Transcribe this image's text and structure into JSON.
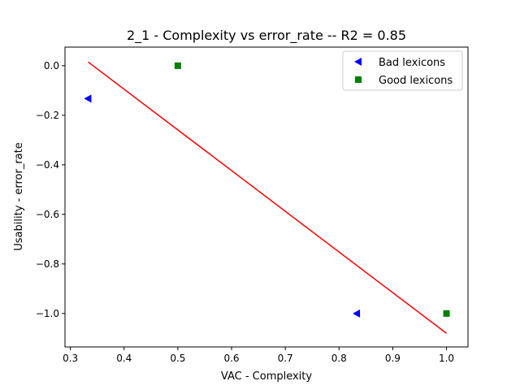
{
  "chart_data": {
    "type": "scatter",
    "title": "2_1 - Complexity  vs  error_rate -- R2 = 0.85",
    "xlabel": "VAC - Complexity",
    "ylabel": "Usability - error_rate",
    "xlim": [
      0.29,
      1.04
    ],
    "ylim": [
      -1.135,
      0.075
    ],
    "xticks": [
      0.3,
      0.4,
      0.5,
      0.6,
      0.7,
      0.8,
      0.9,
      1.0
    ],
    "xtick_labels": [
      "0.3",
      "0.4",
      "0.5",
      "0.6",
      "0.7",
      "0.8",
      "0.9",
      "1.0"
    ],
    "yticks": [
      0.0,
      -0.2,
      -0.4,
      -0.6,
      -0.8,
      -1.0
    ],
    "ytick_labels": [
      "0.0",
      "−0.2",
      "−0.4",
      "−0.6",
      "−0.8",
      "−1.0"
    ],
    "grid": false,
    "legend_position": "top-right",
    "series": [
      {
        "name": "Bad lexicons",
        "marker": "triangle-left",
        "color": "#0000ff",
        "points": [
          [
            0.333,
            -0.133
          ],
          [
            0.833,
            -1.0
          ]
        ]
      },
      {
        "name": "Good lexicons",
        "marker": "square",
        "color": "#008000",
        "points": [
          [
            0.5,
            0.0
          ],
          [
            1.0,
            -1.0
          ]
        ]
      }
    ],
    "fit_line": {
      "color": "#ff0000",
      "x": [
        0.333,
        1.0
      ],
      "y": [
        0.015,
        -1.08
      ]
    }
  }
}
